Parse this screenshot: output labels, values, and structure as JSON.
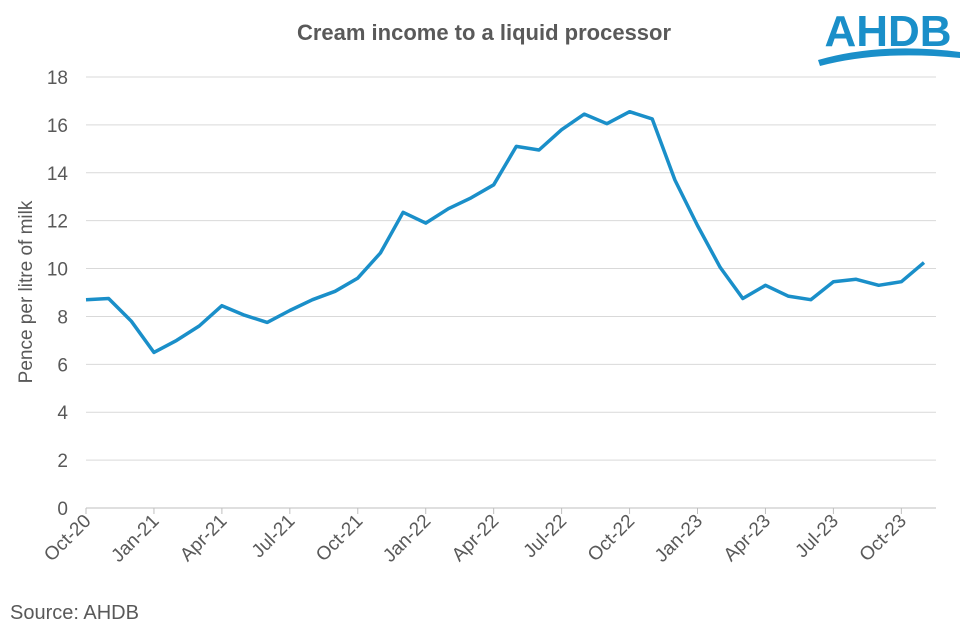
{
  "chart_data": {
    "type": "line",
    "title": "Cream income to a liquid processor",
    "y_label": "Pence per litre of milk",
    "source": "Source: AHDB",
    "logo": "AHDB",
    "categories": [
      "Oct-20",
      null,
      null,
      "Jan-21",
      null,
      null,
      "Apr-21",
      null,
      null,
      "Jul-21",
      null,
      null,
      "Oct-21",
      null,
      null,
      "Jan-22",
      null,
      null,
      "Apr-22",
      null,
      null,
      "Jul-22",
      null,
      null,
      "Oct-22",
      null,
      null,
      "Jan-23",
      null,
      null,
      "Apr-23",
      null,
      null,
      "Jul-23",
      null,
      null,
      "Oct-23",
      null
    ],
    "series": [
      {
        "name": "Cream income",
        "color": "#1a8fc9",
        "values": [
          8.7,
          8.75,
          7.8,
          6.5,
          7.0,
          7.6,
          8.45,
          8.05,
          7.75,
          8.25,
          8.7,
          9.05,
          9.6,
          10.65,
          12.35,
          11.9,
          12.5,
          12.95,
          13.5,
          15.1,
          14.95,
          15.8,
          16.45,
          16.05,
          16.55,
          16.25,
          13.7,
          11.8,
          10.05,
          8.75,
          9.3,
          8.85,
          8.7,
          9.45,
          9.55,
          9.3,
          9.45,
          10.25
        ]
      }
    ],
    "ylim": [
      0,
      18
    ],
    "yticks": [
      0,
      2,
      4,
      6,
      8,
      10,
      12,
      14,
      16,
      18
    ],
    "grid": true
  }
}
